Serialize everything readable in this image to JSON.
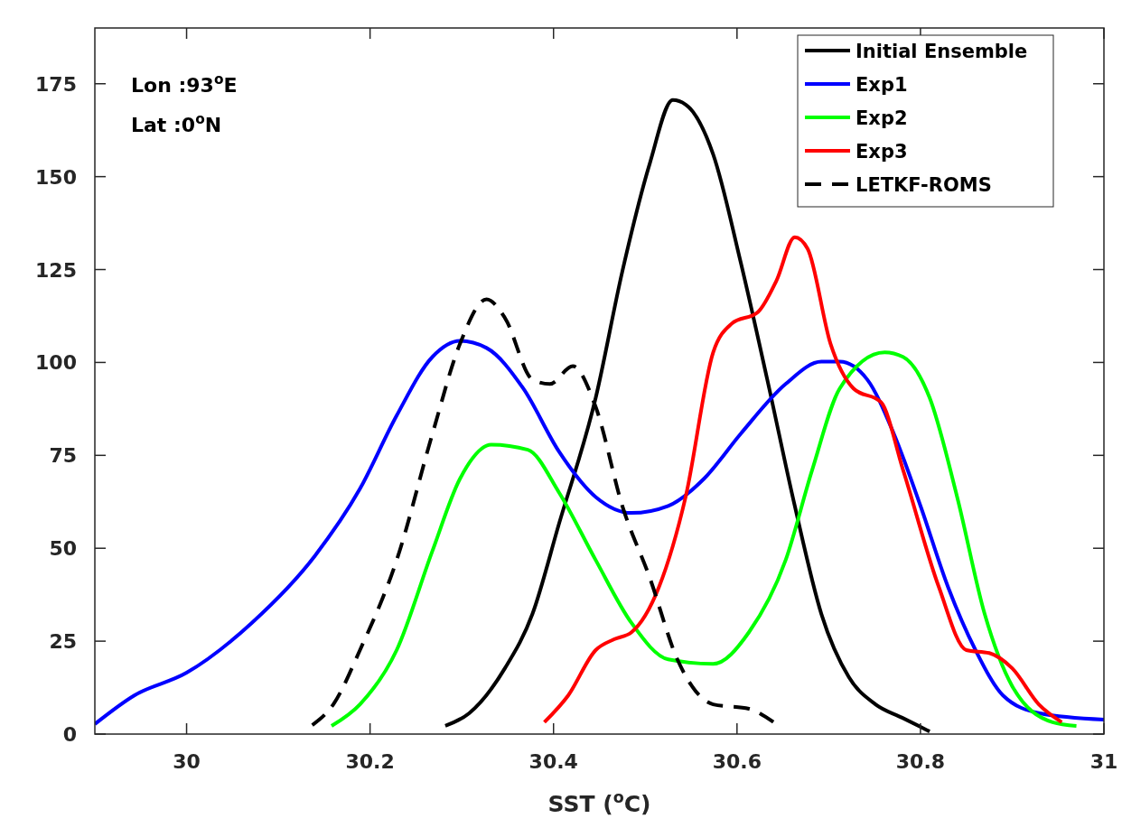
{
  "chart_data": {
    "type": "line",
    "xlabel": "SST ($^{o}$C)",
    "xlim": [
      29.9,
      31
    ],
    "xticks": [
      30,
      30.2,
      30.4,
      30.6,
      30.8,
      31
    ],
    "ylim": [
      0,
      190
    ],
    "yticks": [
      0,
      25,
      50,
      75,
      100,
      125,
      150,
      175
    ],
    "grid": false,
    "legend": "top right",
    "annotations": [
      "Lon :93$^{o}$E",
      "Lat :0$^{o}$N"
    ],
    "series": [
      {
        "name": "Initial Ensemble",
        "color": "#000000",
        "line_style": "solid",
        "x": [
          30.282,
          30.308,
          30.347,
          30.377,
          30.406,
          30.446,
          30.475,
          30.505,
          30.53,
          30.544,
          30.574,
          30.604,
          30.633,
          30.663,
          30.692,
          30.722,
          30.751,
          30.78,
          30.81
        ],
        "values": [
          2.2,
          5.6,
          17.7,
          32.3,
          56.6,
          90.5,
          124.5,
          153.6,
          170.6,
          169.4,
          156,
          127,
          95.4,
          61.4,
          32.3,
          15.3,
          8,
          4.4,
          0.7
        ]
      },
      {
        "name": "Exp1",
        "color": "#0000ff",
        "line_style": "solid",
        "x": [
          29.9,
          29.943,
          30,
          30.071,
          30.14,
          30.189,
          30.229,
          30.268,
          30.298,
          30.327,
          30.367,
          30.406,
          30.446,
          30.485,
          30.525,
          30.564,
          30.604,
          30.653,
          30.692,
          30.712,
          30.742,
          30.771,
          30.8,
          30.83,
          30.86,
          30.89,
          30.93,
          31
        ],
        "values": [
          2.7,
          10.4,
          16.5,
          29.9,
          48,
          66,
          85.7,
          101.5,
          105.8,
          103.9,
          93,
          76,
          63.8,
          59.5,
          61.4,
          68.7,
          80.8,
          94.2,
          100.2,
          100.2,
          95.4,
          80.8,
          61.4,
          39.6,
          22.6,
          10.4,
          5.6,
          3.9
        ]
      },
      {
        "name": "Exp2",
        "color": "#00ff00",
        "line_style": "solid",
        "x": [
          30.158,
          30.189,
          30.229,
          30.268,
          30.298,
          30.332,
          30.372,
          30.406,
          30.446,
          30.485,
          30.525,
          30.574,
          30.613,
          30.653,
          30.682,
          30.712,
          30.761,
          30.781,
          30.81,
          30.84,
          30.87,
          30.9,
          30.944,
          30.97
        ],
        "values": [
          2.2,
          8,
          22.6,
          49.3,
          68.7,
          77.9,
          76.5,
          65,
          46.8,
          29.9,
          20.1,
          18.9,
          27.4,
          46.8,
          71.1,
          93,
          102.7,
          101.5,
          90.5,
          63.8,
          32.3,
          12.9,
          3.2,
          2.2
        ]
      },
      {
        "name": "Exp3",
        "color": "#ff0000",
        "line_style": "solid",
        "x": [
          30.39,
          30.416,
          30.446,
          30.466,
          30.485,
          30.515,
          30.544,
          30.574,
          30.594,
          30.623,
          30.643,
          30.663,
          30.677,
          30.702,
          30.727,
          30.757,
          30.781,
          30.82,
          30.85,
          30.875,
          30.9,
          30.929,
          30.954
        ],
        "values": [
          3.2,
          10.4,
          22.6,
          25.5,
          27.4,
          39.6,
          63.8,
          102.7,
          110.4,
          113.6,
          122,
          133.7,
          130.6,
          105,
          93,
          89.3,
          71.1,
          39.6,
          22.6,
          21.8,
          17.7,
          8,
          3.2
        ]
      },
      {
        "name": "LETKF-ROMS",
        "color": "#000000",
        "line_style": "dashed",
        "x": [
          30.137,
          30.16,
          30.189,
          30.229,
          30.268,
          30.298,
          30.327,
          30.347,
          30.377,
          30.396,
          30.421,
          30.446,
          30.475,
          30.505,
          30.535,
          30.574,
          30.613,
          30.64
        ],
        "values": [
          2.4,
          8,
          22.6,
          46.8,
          80.8,
          105,
          117,
          112,
          95.4,
          94.2,
          99,
          88,
          61.4,
          42,
          20.1,
          8,
          6.8,
          3.2
        ]
      }
    ]
  }
}
